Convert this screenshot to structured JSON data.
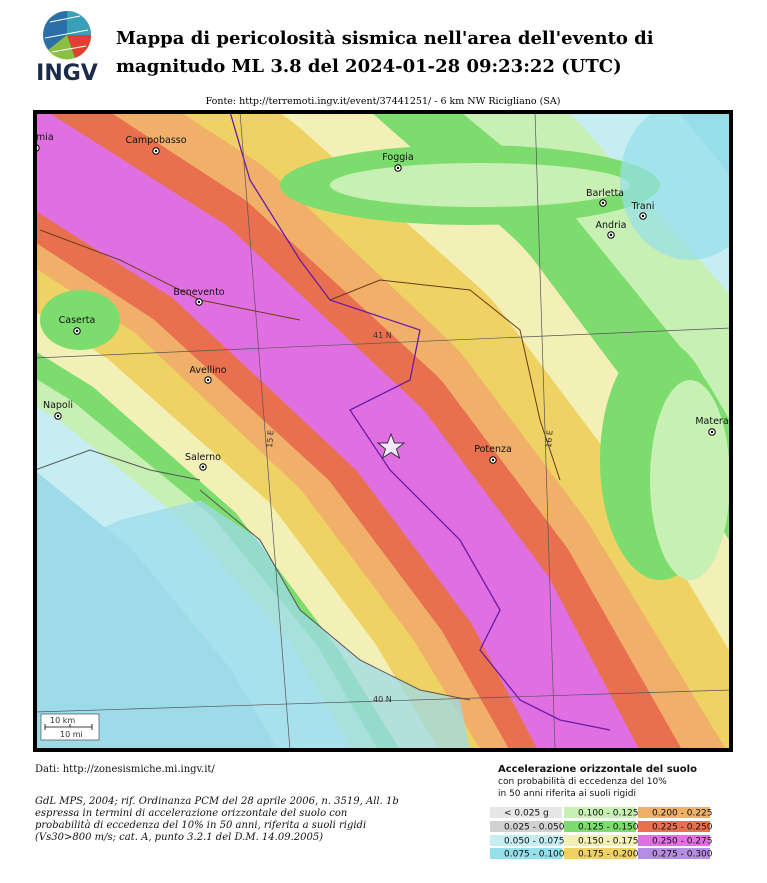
{
  "header": {
    "logo_text": "INGV",
    "title_lines": [
      "Mappa di pericolosità sismica nell'area dell'evento di",
      "magnitudo ML 3.8 del 2024-01-28 09:23:22 (UTC)"
    ],
    "source": "Fonte: http://terremoti.ingv.it/event/37441251/ - 6 km NW Ricigliano (SA)"
  },
  "map": {
    "cities": [
      "mia",
      "Campobasso",
      "Foggia",
      "Barletta",
      "Trani",
      "Andria",
      "Benevento",
      "Caserta",
      "Avellino",
      "Napoli",
      "Salerno",
      "Potenza",
      "Matera"
    ],
    "graticule": [
      "41 N",
      "15 E",
      "16 E",
      "40 N"
    ],
    "scale": [
      "10 km",
      "10 mi"
    ]
  },
  "footer": {
    "data_source": "Dati: http://zonesismiche.mi.ingv.it/",
    "citation_lines": [
      "GdL MPS, 2004; rif. Ordinanza PCM del 28 aprile 2006, n. 3519, All. 1b",
      "espressa in termini di accelerazione orizzontale del suolo con",
      "probabilità di eccedenza del 10% in 50 anni, riferita a suoli rigidi",
      "(Vs30>800 m/s; cat. A, punto 3.2.1 del D.M. 14.09.2005)"
    ]
  },
  "legend": {
    "title": "Accelerazione orizzontale del suolo",
    "subtitle_lines": [
      "con probabilità di eccedenza del 10%",
      "in 50 anni riferita ai suoli rigidi"
    ],
    "items": [
      {
        "label": "< 0.025 g",
        "color": "#e6e6e6"
      },
      {
        "label": "0.025 - 0.050",
        "color": "#d2d2d2"
      },
      {
        "label": "0.050 - 0.075",
        "color": "#c6eef2"
      },
      {
        "label": "0.075 - 0.100",
        "color": "#94e0ea"
      },
      {
        "label": "0.100 - 0.125",
        "color": "#c8efb4"
      },
      {
        "label": "0.125 - 0.150",
        "color": "#7ddc6e"
      },
      {
        "label": "0.150 - 0.175",
        "color": "#f2f0b6"
      },
      {
        "label": "0.175 - 0.200",
        "color": "#efd264"
      },
      {
        "label": "0.200 - 0.225",
        "color": "#f0b06a"
      },
      {
        "label": "0.225 - 0.250",
        "color": "#e8704e"
      },
      {
        "label": "0.250 - 0.275",
        "color": "#e070e2"
      },
      {
        "label": "0.275 - 0.300",
        "color": "#b48ee2"
      }
    ]
  }
}
